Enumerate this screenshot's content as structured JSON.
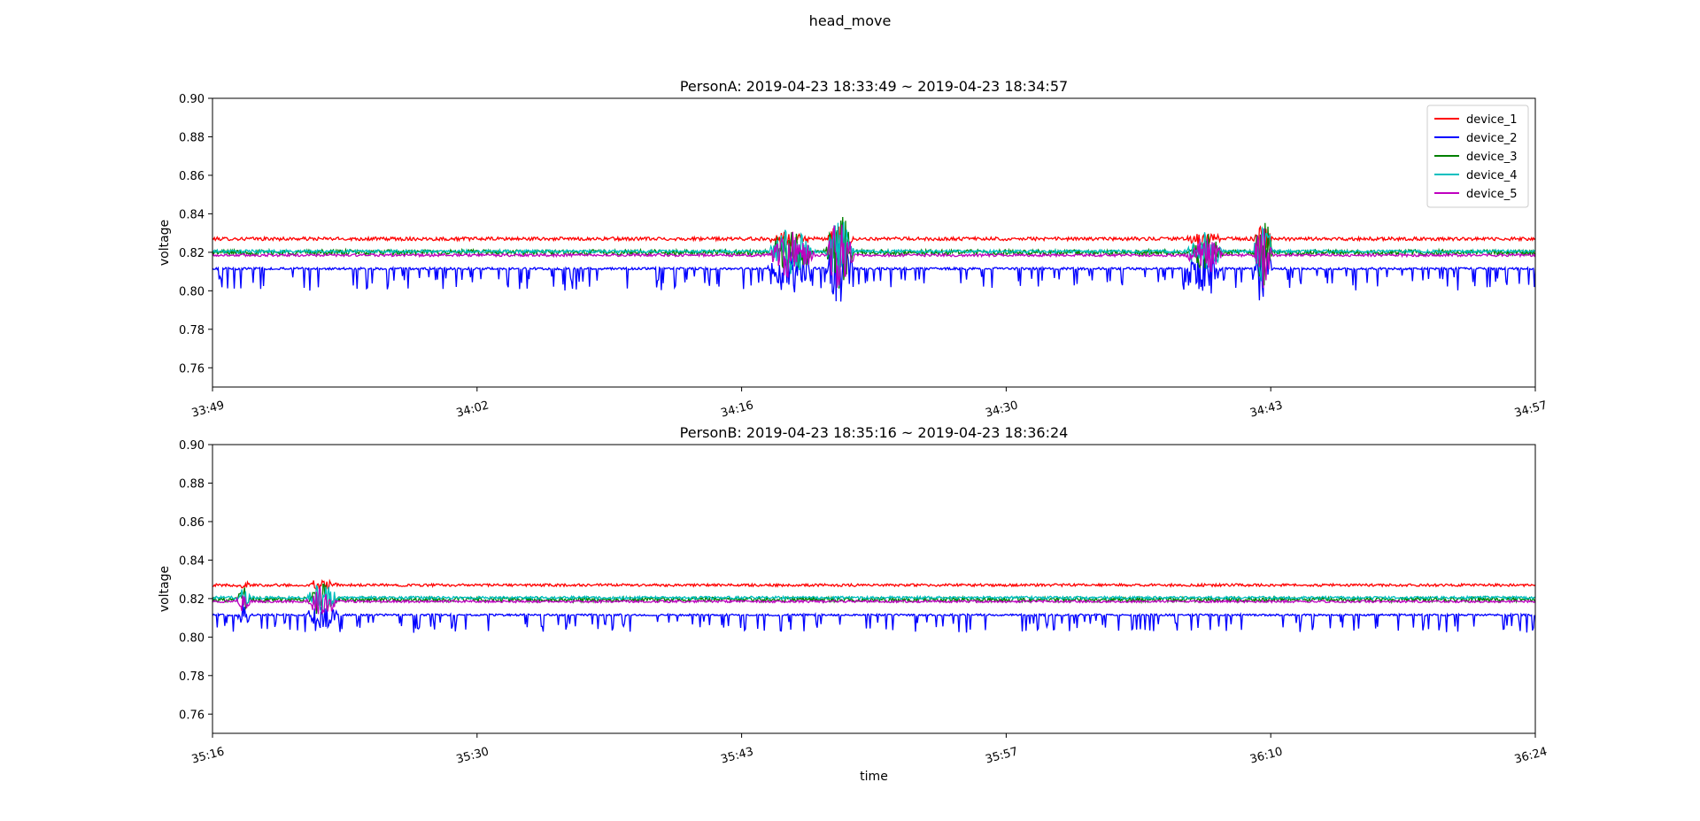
{
  "figure": {
    "suptitle": "head_move"
  },
  "chart_data": [
    {
      "type": "line",
      "title": "PersonA: 2019-04-23 18:33:49 ~ 2019-04-23 18:34:57",
      "xlabel": "",
      "ylabel": "voltage",
      "x_range": [
        "2019-04-23 18:33:49",
        "2019-04-23 18:34:57"
      ],
      "ylim": [
        0.75,
        0.9
      ],
      "yticks": [
        "0.76",
        "0.78",
        "0.80",
        "0.82",
        "0.84",
        "0.86",
        "0.88",
        "0.90"
      ],
      "xticks": [
        {
          "label": "33:49",
          "offset_s": 0
        },
        {
          "label": "34:02",
          "offset_s": 13.6
        },
        {
          "label": "34:16",
          "offset_s": 27.2
        },
        {
          "label": "34:30",
          "offset_s": 40.8
        },
        {
          "label": "34:43",
          "offset_s": 54.4
        },
        {
          "label": "34:57",
          "offset_s": 68
        }
      ],
      "duration_s": 68,
      "grid": false,
      "legend": {
        "placement": "upper-right",
        "show": true
      },
      "series": [
        {
          "name": "device_1",
          "color": "#ff0000",
          "baseline": 0.827,
          "noise": 0.0009,
          "dips": {
            "prob": 0.0,
            "depth": 0.0
          }
        },
        {
          "name": "device_2",
          "color": "#0000ff",
          "baseline": 0.8115,
          "noise": 0.0006,
          "dips": {
            "prob": 0.12,
            "depth": 0.011
          }
        },
        {
          "name": "device_3",
          "color": "#008000",
          "baseline": 0.82,
          "noise": 0.0014,
          "dips": {
            "prob": 0.0,
            "depth": 0.0
          }
        },
        {
          "name": "device_4",
          "color": "#00bfbf",
          "baseline": 0.8205,
          "noise": 0.0008,
          "dips": {
            "prob": 0.0,
            "depth": 0.0
          }
        },
        {
          "name": "device_5",
          "color": "#bf00bf",
          "baseline": 0.8185,
          "noise": 0.0007,
          "dips": {
            "prob": 0.0,
            "depth": 0.0
          }
        }
      ],
      "bursts": [
        {
          "t0": 28.5,
          "t1": 31.0,
          "amp": 0.012
        },
        {
          "t0": 31.5,
          "t1": 33.0,
          "amp": 0.02
        },
        {
          "t0": 50.0,
          "t1": 52.0,
          "amp": 0.01
        },
        {
          "t0": 53.5,
          "t1": 54.5,
          "amp": 0.018
        }
      ]
    },
    {
      "type": "line",
      "title": "PersonB: 2019-04-23 18:35:16 ~ 2019-04-23 18:36:24",
      "xlabel": "time",
      "ylabel": "voltage",
      "x_range": [
        "2019-04-23 18:35:16",
        "2019-04-23 18:36:24"
      ],
      "ylim": [
        0.75,
        0.9
      ],
      "yticks": [
        "0.76",
        "0.78",
        "0.80",
        "0.82",
        "0.84",
        "0.86",
        "0.88",
        "0.90"
      ],
      "xticks": [
        {
          "label": "35:16",
          "offset_s": 0
        },
        {
          "label": "35:30",
          "offset_s": 13.6
        },
        {
          "label": "35:43",
          "offset_s": 27.2
        },
        {
          "label": "35:57",
          "offset_s": 40.8
        },
        {
          "label": "36:10",
          "offset_s": 54.4
        },
        {
          "label": "36:24",
          "offset_s": 68
        }
      ],
      "duration_s": 68,
      "grid": false,
      "legend": {
        "show": false
      },
      "series": [
        {
          "name": "device_1",
          "color": "#ff0000",
          "baseline": 0.827,
          "noise": 0.0007,
          "dips": {
            "prob": 0.0,
            "depth": 0.0
          }
        },
        {
          "name": "device_2",
          "color": "#0000ff",
          "baseline": 0.8115,
          "noise": 0.0005,
          "dips": {
            "prob": 0.13,
            "depth": 0.009
          }
        },
        {
          "name": "device_3",
          "color": "#008000",
          "baseline": 0.8195,
          "noise": 0.0013,
          "dips": {
            "prob": 0.0,
            "depth": 0.0
          }
        },
        {
          "name": "device_4",
          "color": "#00bfbf",
          "baseline": 0.8205,
          "noise": 0.0007,
          "dips": {
            "prob": 0.0,
            "depth": 0.0
          }
        },
        {
          "name": "device_5",
          "color": "#bf00bf",
          "baseline": 0.8185,
          "noise": 0.0006,
          "dips": {
            "prob": 0.0,
            "depth": 0.0
          }
        }
      ],
      "bursts": [
        {
          "t0": 1.2,
          "t1": 2.0,
          "amp": 0.006
        },
        {
          "t0": 4.8,
          "t1": 6.5,
          "amp": 0.008
        }
      ]
    }
  ]
}
